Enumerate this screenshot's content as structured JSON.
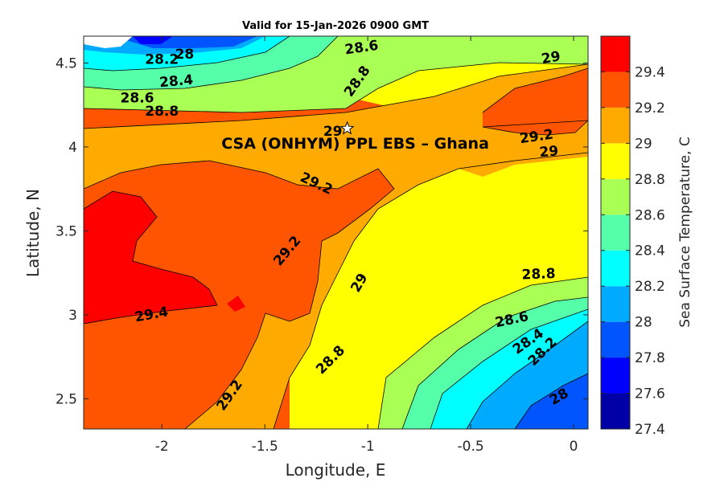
{
  "chart_data": {
    "type": "contour",
    "title": "Valid for 15-Jan-2026 0900 GMT",
    "xlabel": "Longitude, E",
    "ylabel": "Latitude, N",
    "xlim": [
      -2.38,
      0.07
    ],
    "ylim": [
      2.32,
      4.66
    ],
    "x_ticks": [
      -2,
      -1.5,
      -1,
      -0.5,
      0
    ],
    "x_tick_labels": [
      "-2",
      "-1.5",
      "-1",
      "-0.5",
      "0"
    ],
    "y_ticks": [
      2.5,
      3,
      3.5,
      4,
      4.5
    ],
    "y_tick_labels": [
      "2.5",
      "3",
      "3.5",
      "4",
      "4.5"
    ],
    "colorbar": {
      "label": "Sea Surface Temperature, C",
      "min": 27.4,
      "max": 29.6,
      "ticks": [
        27.4,
        27.6,
        27.8,
        28,
        28.2,
        28.4,
        28.6,
        28.8,
        29,
        29.2,
        29.4
      ],
      "tick_labels": [
        "27.4",
        "27.6",
        "27.8",
        "28",
        "28.2",
        "28.4",
        "28.6",
        "28.8",
        "29",
        "29.2",
        "29.4"
      ],
      "levels": [
        {
          "from": 27.4,
          "to": 27.6,
          "color": "#0000a6"
        },
        {
          "from": 27.6,
          "to": 27.8,
          "color": "#0000ff"
        },
        {
          "from": 27.8,
          "to": 28.0,
          "color": "#0055ff"
        },
        {
          "from": 28.0,
          "to": 28.2,
          "color": "#00aaff"
        },
        {
          "from": 28.2,
          "to": 28.4,
          "color": "#00ffff"
        },
        {
          "from": 28.4,
          "to": 28.6,
          "color": "#55ff aa"
        },
        {
          "from": 28.6,
          "to": 28.8,
          "color": "#aaff55"
        },
        {
          "from": 28.8,
          "to": 29.0,
          "color": "#ffff00"
        },
        {
          "from": 29.0,
          "to": 29.2,
          "color": "#ffaa00"
        },
        {
          "from": 29.2,
          "to": 29.4,
          "color": "#ff5500"
        },
        {
          "from": 29.4,
          "to": 29.6,
          "color": "#ff0000"
        }
      ]
    },
    "contour_labels": [
      {
        "text": "28.2",
        "x": -2.0,
        "y": 4.52,
        "angle": 0
      },
      {
        "text": "28",
        "x": -1.89,
        "y": 4.55,
        "angle": 0
      },
      {
        "text": "28.4",
        "x": -1.93,
        "y": 4.39,
        "angle": -5
      },
      {
        "text": "28.6",
        "x": -2.12,
        "y": 4.29,
        "angle": 0
      },
      {
        "text": "28.8",
        "x": -2.0,
        "y": 4.21,
        "angle": 0
      },
      {
        "text": "28.6",
        "x": -1.03,
        "y": 4.59,
        "angle": -8
      },
      {
        "text": "28.8",
        "x": -1.05,
        "y": 4.39,
        "angle": -55
      },
      {
        "text": "29",
        "x": -1.17,
        "y": 4.09,
        "angle": 0
      },
      {
        "text": "29",
        "x": -0.11,
        "y": 4.53,
        "angle": -10
      },
      {
        "text": "29.2",
        "x": -0.18,
        "y": 4.06,
        "angle": -8
      },
      {
        "text": "29",
        "x": -0.12,
        "y": 3.97,
        "angle": -5
      },
      {
        "text": "29.2",
        "x": -1.25,
        "y": 3.78,
        "angle": 25
      },
      {
        "text": "29.2",
        "x": -1.39,
        "y": 3.38,
        "angle": -50
      },
      {
        "text": "29",
        "x": -1.04,
        "y": 3.19,
        "angle": -60
      },
      {
        "text": "28.8",
        "x": -0.17,
        "y": 3.24,
        "angle": -2
      },
      {
        "text": "29.4",
        "x": -2.05,
        "y": 3.0,
        "angle": -10
      },
      {
        "text": "28.6",
        "x": -0.3,
        "y": 2.97,
        "angle": -12
      },
      {
        "text": "28.4",
        "x": -0.22,
        "y": 2.84,
        "angle": -35
      },
      {
        "text": "28.2",
        "x": -0.15,
        "y": 2.78,
        "angle": -45
      },
      {
        "text": "28.8",
        "x": -1.18,
        "y": 2.73,
        "angle": -45
      },
      {
        "text": "29.2",
        "x": -1.67,
        "y": 2.52,
        "angle": -55
      },
      {
        "text": "28",
        "x": -0.07,
        "y": 2.51,
        "angle": -30
      }
    ],
    "annotations": [
      {
        "text": "CSA (ONHYM) PPL EBS  – Ghana",
        "marker": "star",
        "x": -1.1,
        "y": 4.11
      }
    ]
  }
}
